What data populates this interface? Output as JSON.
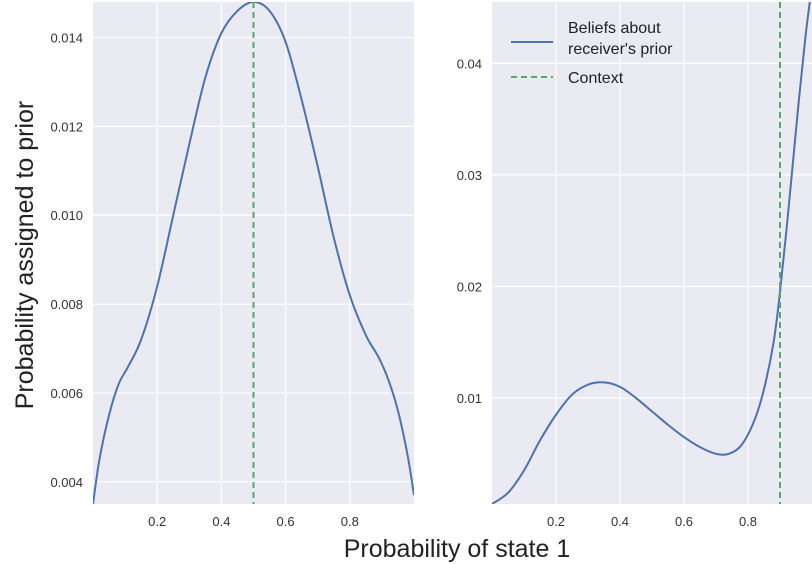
{
  "figure": {
    "xlabel": "Probability of state 1",
    "ylabel": "Probability assigned to prior"
  },
  "colors": {
    "panel_bg": "#EAEAF2",
    "grid": "#FFFFFF",
    "curve": "#4C72B0",
    "context": "#55A868"
  },
  "legend": {
    "placement": "upper-left of right panel",
    "entries": [
      {
        "lines": [
          "Beliefs about",
          "receiver's prior"
        ],
        "style": "solid",
        "color": "#4C72B0"
      },
      {
        "lines": [
          "Context"
        ],
        "style": "dashed",
        "color": "#55A868"
      }
    ]
  },
  "chart_data": [
    {
      "type": "line",
      "xlim": [
        0,
        1
      ],
      "ylim": [
        0.0035,
        0.0148
      ],
      "xticks": [
        0.2,
        0.4,
        0.6,
        0.8
      ],
      "xtick_labels": [
        "0.2",
        "0.4",
        "0.6",
        "0.8"
      ],
      "yticks": [
        0.004,
        0.006,
        0.008,
        0.01,
        0.012,
        0.014
      ],
      "ytick_labels": [
        "0.004",
        "0.006",
        "0.008",
        "0.010",
        "0.012",
        "0.014"
      ],
      "grid": true,
      "context_x": 0.5,
      "series": [
        {
          "style": "solid",
          "x": [
            0.0,
            0.02,
            0.05,
            0.08,
            0.11,
            0.15,
            0.2,
            0.25,
            0.3,
            0.35,
            0.4,
            0.45,
            0.5,
            0.55,
            0.6,
            0.65,
            0.7,
            0.75,
            0.8,
            0.85,
            0.89,
            0.92,
            0.95,
            0.98,
            1.0
          ],
          "y": [
            0.0035,
            0.0045,
            0.0055,
            0.0062,
            0.0066,
            0.0072,
            0.0084,
            0.01,
            0.0116,
            0.0131,
            0.0141,
            0.0146,
            0.0148,
            0.0146,
            0.0139,
            0.0126,
            0.0111,
            0.0095,
            0.0082,
            0.0073,
            0.0068,
            0.0063,
            0.0056,
            0.0046,
            0.0037
          ]
        }
      ]
    },
    {
      "type": "line",
      "xlim": [
        0,
        1
      ],
      "ylim": [
        0.0005,
        0.0455
      ],
      "xticks": [
        0.2,
        0.4,
        0.6,
        0.8
      ],
      "xtick_labels": [
        "0.2",
        "0.4",
        "0.6",
        "0.8"
      ],
      "yticks": [
        0.01,
        0.02,
        0.03,
        0.04
      ],
      "ytick_labels": [
        "0.01",
        "0.02",
        "0.03",
        "0.04"
      ],
      "grid": true,
      "context_x": 0.9,
      "series": [
        {
          "style": "solid",
          "x": [
            0.0,
            0.05,
            0.1,
            0.15,
            0.2,
            0.25,
            0.3,
            0.35,
            0.4,
            0.45,
            0.5,
            0.55,
            0.6,
            0.65,
            0.7,
            0.74,
            0.78,
            0.82,
            0.85,
            0.88,
            0.9,
            0.92,
            0.94,
            0.96,
            0.98,
            1.0
          ],
          "y": [
            0.0005,
            0.0015,
            0.0035,
            0.0062,
            0.0085,
            0.0103,
            0.0112,
            0.0114,
            0.011,
            0.01,
            0.0088,
            0.0076,
            0.0065,
            0.0056,
            0.005,
            0.005,
            0.0058,
            0.008,
            0.0108,
            0.015,
            0.0195,
            0.025,
            0.031,
            0.037,
            0.0425,
            0.047
          ]
        }
      ]
    }
  ]
}
